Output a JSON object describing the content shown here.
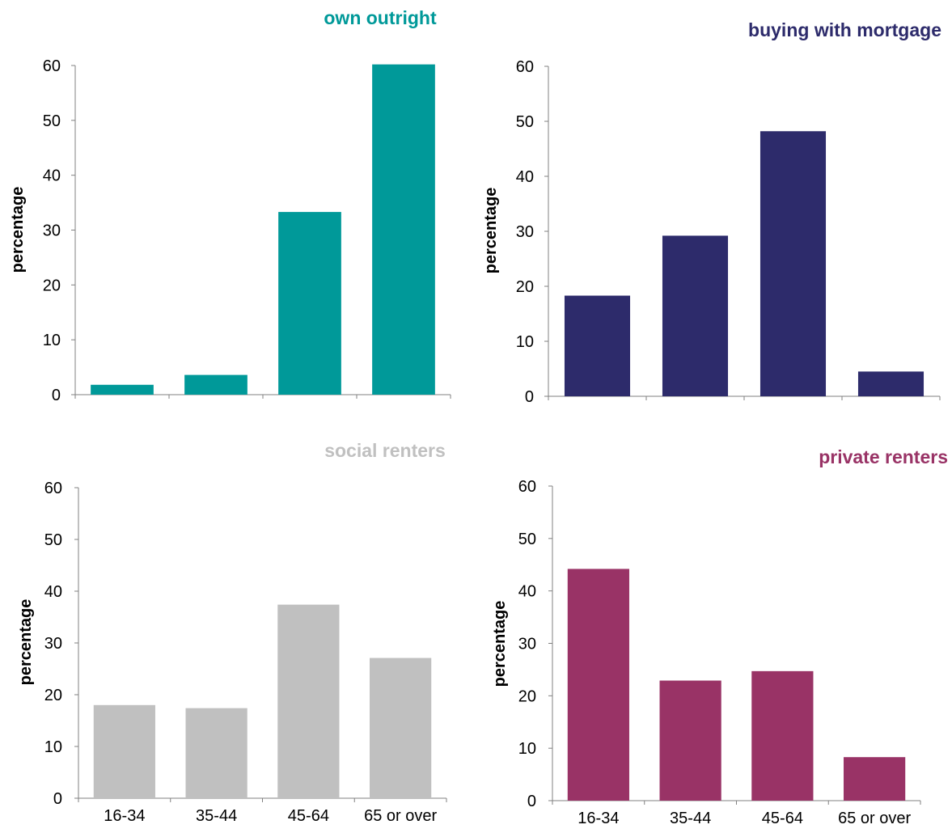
{
  "chart_data": [
    {
      "type": "bar",
      "title": "own outright",
      "color": "#009999",
      "ylabel": "percentage",
      "ylim": [
        0,
        60
      ],
      "yticks": [
        0,
        10,
        20,
        30,
        40,
        50,
        60
      ],
      "categories": [
        "16-34",
        "35-44",
        "45-64",
        "65 or over"
      ],
      "values": [
        1.8,
        3.6,
        33.3,
        60.2
      ],
      "show_category_labels": false
    },
    {
      "type": "bar",
      "title": "buying with mortgage",
      "color": "#2d2b6b",
      "ylabel": "percentage",
      "ylim": [
        0,
        60
      ],
      "yticks": [
        0,
        10,
        20,
        30,
        40,
        50,
        60
      ],
      "categories": [
        "16-34",
        "35-44",
        "45-64",
        "65 or over"
      ],
      "values": [
        18.3,
        29.2,
        48.2,
        4.5
      ],
      "show_category_labels": false
    },
    {
      "type": "bar",
      "title": "social renters",
      "color": "#c0c0c0",
      "ylabel": "percentage",
      "ylim": [
        0,
        60
      ],
      "yticks": [
        0,
        10,
        20,
        30,
        40,
        50,
        60
      ],
      "categories": [
        "16-34",
        "35-44",
        "45-64",
        "65 or over"
      ],
      "values": [
        18.0,
        17.4,
        37.4,
        27.1
      ],
      "show_category_labels": true
    },
    {
      "type": "bar",
      "title": "private renters",
      "color": "#993366",
      "ylabel": "percentage",
      "ylim": [
        0,
        60
      ],
      "yticks": [
        0,
        10,
        20,
        30,
        40,
        50,
        60
      ],
      "categories": [
        "16-34",
        "35-44",
        "45-64",
        "65 or over"
      ],
      "values": [
        44.2,
        22.9,
        24.7,
        8.3
      ],
      "show_category_labels": true
    }
  ]
}
